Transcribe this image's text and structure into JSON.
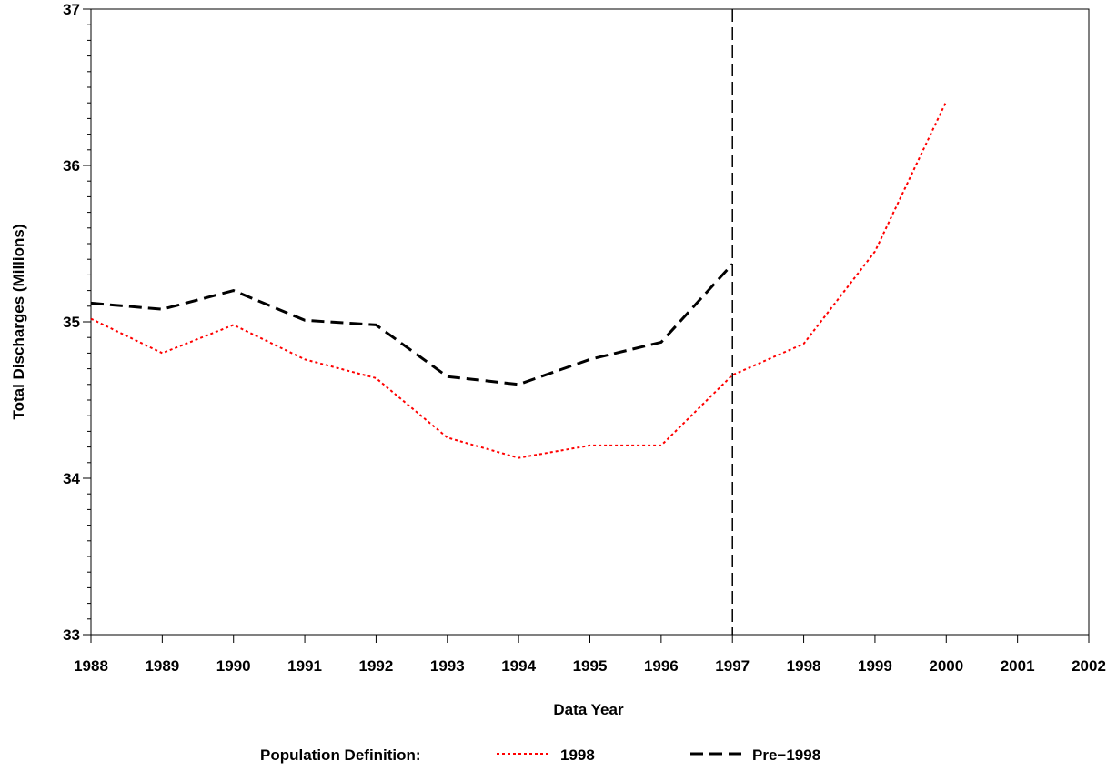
{
  "chart_data": {
    "type": "line",
    "xlabel": "Data Year",
    "ylabel": "Total Discharges (Millions)",
    "xlim": [
      1988,
      2002
    ],
    "ylim": [
      33,
      37
    ],
    "x_ticks": [
      "1988",
      "1989",
      "1990",
      "1991",
      "1992",
      "1993",
      "1994",
      "1995",
      "1996",
      "1997",
      "1998",
      "1999",
      "2000",
      "2001",
      "2002"
    ],
    "y_ticks": [
      "33",
      "34",
      "35",
      "36",
      "37"
    ],
    "reference_line": {
      "x": 1997,
      "style": "dashed",
      "color": "#000000"
    },
    "legend": {
      "title": "Population Definition:",
      "placement": "bottom"
    },
    "series": [
      {
        "name": "1998",
        "color": "#ff0000",
        "dash": "dotted",
        "x": [
          1988,
          1989,
          1990,
          1991,
          1992,
          1993,
          1994,
          1995,
          1996,
          1997,
          1998,
          1999,
          2000
        ],
        "values": [
          35.02,
          34.8,
          34.98,
          34.76,
          34.64,
          34.26,
          34.13,
          34.21,
          34.21,
          34.66,
          34.86,
          35.45,
          36.41
        ]
      },
      {
        "name": "Pre−1998",
        "color": "#000000",
        "dash": "dashed",
        "x": [
          1988,
          1989,
          1990,
          1991,
          1992,
          1993,
          1994,
          1995,
          1996,
          1997
        ],
        "values": [
          35.12,
          35.08,
          35.2,
          35.01,
          34.98,
          34.65,
          34.6,
          34.76,
          34.87,
          35.37
        ]
      }
    ]
  }
}
